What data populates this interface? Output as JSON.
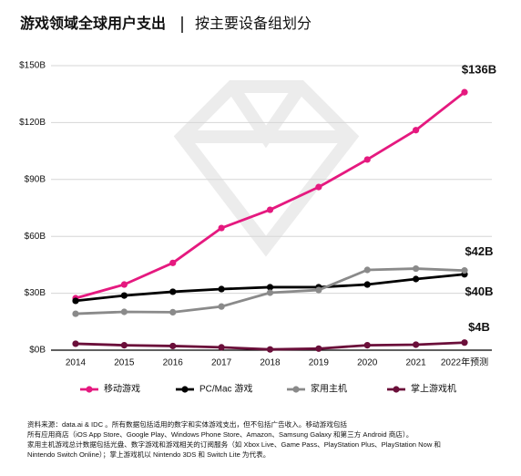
{
  "chart_data": {
    "type": "line",
    "title": "游戏领域全球用户支出",
    "subtitle": "按主要设备组划分",
    "categories": [
      "2014",
      "2015",
      "2016",
      "2017",
      "2018",
      "2019",
      "2020",
      "2021",
      "2022年预测"
    ],
    "series": [
      {
        "name": "移动游戏",
        "color": "#e5197f",
        "values": [
          27.4,
          34.6,
          46,
          64.4,
          74,
          86,
          100.5,
          116,
          136
        ],
        "value_labels": [
          null,
          null,
          null,
          null,
          null,
          null,
          null,
          null,
          "$136B"
        ]
      },
      {
        "name": "PC/Mac 游戏",
        "color": "#000000",
        "values": [
          26,
          28.8,
          30.8,
          32.2,
          33.2,
          33.2,
          34.6,
          37.5,
          40
        ],
        "value_labels": [
          null,
          null,
          null,
          null,
          null,
          null,
          null,
          null,
          "$40B"
        ]
      },
      {
        "name": "家用主机",
        "color": "#8a8a8a",
        "values": [
          19.2,
          20.2,
          20,
          23,
          30.3,
          31.7,
          42.3,
          43,
          42
        ],
        "value_labels": [
          null,
          null,
          null,
          null,
          null,
          null,
          null,
          null,
          "$42B"
        ]
      },
      {
        "name": "掌上游戏机",
        "color": "#6b0f3a",
        "values": [
          3.4,
          2.6,
          2.2,
          1.5,
          0.4,
          0.8,
          2.6,
          2.9,
          4
        ],
        "value_labels": [
          null,
          null,
          null,
          null,
          null,
          null,
          null,
          null,
          "$4B"
        ]
      }
    ],
    "ylim": [
      0,
      150
    ],
    "yticks": [
      {
        "value": 0,
        "label": "$0B"
      },
      {
        "value": 30,
        "label": "$30B"
      },
      {
        "value": 60,
        "label": "$60B"
      },
      {
        "value": 90,
        "label": "$90B"
      },
      {
        "value": 120,
        "label": "$120B"
      },
      {
        "value": 150,
        "label": "$150B"
      }
    ],
    "grid": true,
    "legend": "bottom",
    "notes": [
      "资料来源：data.ai & IDC 。所有数据包括适用的数字和实体游戏支出，但不包括广告收入。移动游戏包括",
      "所有应用商店（iOS App Store、Google Play、Windows Phone Store、Amazon、Samsung Galaxy 和第三方 Android 商店）。",
      "家用主机游戏总计数据包括光盘、数字游戏和游戏相关的订阅服务（如 Xbox Live、Game Pass、PlayStation Plus、PlayStation Now 和",
      "Nintendo Switch Online）；掌上游戏机以 Nintendo 3DS 和 Switch Lite 为代表。"
    ]
  }
}
